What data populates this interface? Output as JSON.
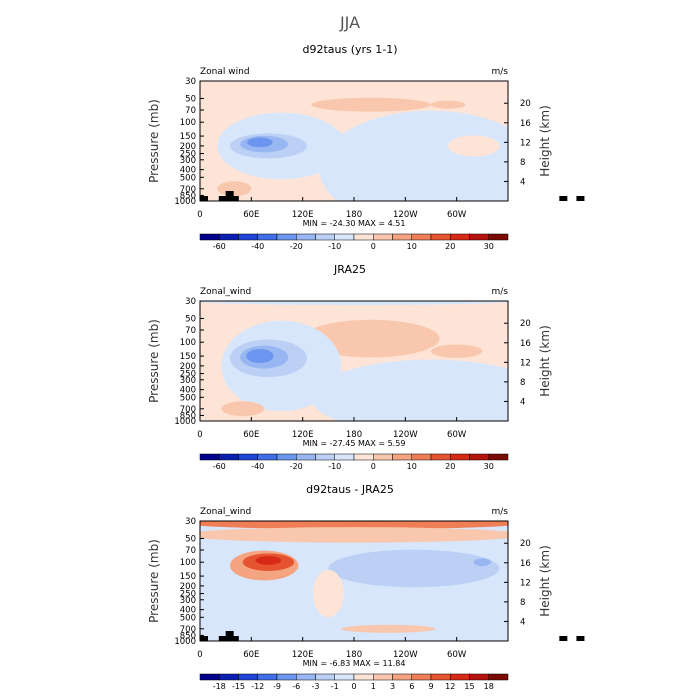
{
  "figure": {
    "title": "JJA",
    "variable": "Zonal wind",
    "units": "m/s"
  },
  "chart_data": [
    {
      "type": "heatmap",
      "title": "d92taus (yrs 1-1)",
      "variable_label": "Zonal wind",
      "units": "m/s",
      "ylabel": "Pressure (mb)",
      "ylabel_right": "Height (km)",
      "xticks": [
        "0",
        "60E",
        "120E",
        "180",
        "120W",
        "60W"
      ],
      "yticks_left": [
        "30",
        "50",
        "70",
        "100",
        "150",
        "200",
        "250",
        "300",
        "400",
        "500",
        "700",
        "850",
        "1000"
      ],
      "yticks_right": [
        "20",
        "16",
        "12",
        "8",
        "4"
      ],
      "stats": "MIN = -24.30   MAX =   4.51",
      "colorbar_colors": [
        "#00008b",
        "#0a1fb0",
        "#1f45d6",
        "#3f6ee6",
        "#6b95ee",
        "#97b6f2",
        "#bcd0f6",
        "#d8e6fb",
        "#fde4d6",
        "#f9c7ad",
        "#f5a481",
        "#ef7e57",
        "#e65331",
        "#d72a16",
        "#b5120b",
        "#7a0b05"
      ],
      "colorbar_labels": [
        "-60",
        "-40",
        "-20",
        "-10",
        "0",
        "10",
        "20",
        "30"
      ],
      "colorbar_label_at": [
        1,
        3,
        5,
        7,
        9,
        11,
        13,
        15
      ],
      "base_color": "#fde4d6",
      "regions": [
        {
          "lon": 200,
          "p": 60,
          "rx": 70,
          "rp": 12,
          "level": 9
        },
        {
          "lon": 290,
          "p": 60,
          "rx": 20,
          "rp": 6,
          "level": 9
        },
        {
          "lon": 95,
          "p": 200,
          "rx": 75,
          "rp": 150,
          "level": 7
        },
        {
          "lon": 270,
          "p": 400,
          "rx": 130,
          "rp": 450,
          "level": 7
        },
        {
          "lon": 80,
          "p": 200,
          "rx": 45,
          "rp": 70,
          "level": 6
        },
        {
          "lon": 75,
          "p": 190,
          "rx": 28,
          "rp": 45,
          "level": 5
        },
        {
          "lon": 70,
          "p": 180,
          "rx": 15,
          "rp": 25,
          "level": 4
        },
        {
          "lon": 40,
          "p": 700,
          "rx": 20,
          "rp": 150,
          "level": 9
        },
        {
          "lon": 320,
          "p": 200,
          "rx": 30,
          "rp": 60,
          "level": 8
        }
      ],
      "topography": [
        [
          0,
          5
        ],
        [
          22,
          5
        ],
        [
          30,
          10
        ],
        [
          36,
          5
        ],
        [
          420,
          5
        ],
        [
          440,
          5
        ]
      ]
    },
    {
      "type": "heatmap",
      "title": "JRA25",
      "variable_label": "Zonal_wind",
      "units": "m/s",
      "ylabel": "Pressure (mb)",
      "ylabel_right": "Height (km)",
      "xticks": [
        "0",
        "60E",
        "120E",
        "180",
        "120W",
        "60W"
      ],
      "yticks_left": [
        "30",
        "50",
        "70",
        "100",
        "150",
        "200",
        "250",
        "300",
        "400",
        "500",
        "700",
        "850",
        "1000"
      ],
      "yticks_right": [
        "20",
        "16",
        "12",
        "8",
        "4"
      ],
      "stats": "MIN = -27.45   MAX =   5.59",
      "colorbar_colors": [
        "#00008b",
        "#0a1fb0",
        "#1f45d6",
        "#3f6ee6",
        "#6b95ee",
        "#97b6f2",
        "#bcd0f6",
        "#d8e6fb",
        "#fde4d6",
        "#f9c7ad",
        "#f5a481",
        "#ef7e57",
        "#e65331",
        "#d72a16",
        "#b5120b",
        "#7a0b05"
      ],
      "colorbar_labels": [
        "-60",
        "-40",
        "-20",
        "-10",
        "0",
        "10",
        "20",
        "30"
      ],
      "colorbar_label_at": [
        1,
        3,
        5,
        7,
        9,
        11,
        13,
        15
      ],
      "base_color": "#fde4d6",
      "regions": [
        {
          "lon": 180,
          "p": 30,
          "rx": 190,
          "rp": 4,
          "level": 7
        },
        {
          "lon": 200,
          "p": 90,
          "rx": 80,
          "rp": 45,
          "level": 9
        },
        {
          "lon": 300,
          "p": 130,
          "rx": 30,
          "rp": 25,
          "level": 9
        },
        {
          "lon": 95,
          "p": 200,
          "rx": 70,
          "rp": 180,
          "level": 7
        },
        {
          "lon": 270,
          "p": 500,
          "rx": 140,
          "rp": 400,
          "level": 7
        },
        {
          "lon": 80,
          "p": 160,
          "rx": 45,
          "rp": 80,
          "level": 6
        },
        {
          "lon": 75,
          "p": 155,
          "rx": 28,
          "rp": 50,
          "level": 5
        },
        {
          "lon": 70,
          "p": 150,
          "rx": 16,
          "rp": 30,
          "level": 4
        },
        {
          "lon": 50,
          "p": 700,
          "rx": 25,
          "rp": 150,
          "level": 9
        }
      ],
      "topography": []
    },
    {
      "type": "heatmap",
      "title": "d92taus - JRA25",
      "variable_label": "Zonal_wind",
      "units": "m/s",
      "ylabel": "Pressure (mb)",
      "ylabel_right": "Height (km)",
      "xticks": [
        "0",
        "60E",
        "120E",
        "180",
        "120W",
        "60W"
      ],
      "yticks_left": [
        "30",
        "50",
        "70",
        "100",
        "150",
        "200",
        "250",
        "300",
        "400",
        "500",
        "700",
        "850",
        "1000"
      ],
      "yticks_right": [
        "20",
        "16",
        "12",
        "8",
        "4"
      ],
      "stats": "MIN =  -6.83   MAX =  11.84",
      "colorbar_colors": [
        "#00008b",
        "#0a1fb0",
        "#1f45d6",
        "#3f6ee6",
        "#6b95ee",
        "#97b6f2",
        "#bcd0f6",
        "#d8e6fb",
        "#fde4d6",
        "#f9c7ad",
        "#f5a481",
        "#ef7e57",
        "#e65331",
        "#d72a16",
        "#b5120b",
        "#7a0b05"
      ],
      "colorbar_labels": [
        "-18",
        "-15",
        "-12",
        "-9",
        "-6",
        "-3",
        "-1",
        "0",
        "1",
        "3",
        "6",
        "9",
        "12",
        "15",
        "18"
      ],
      "colorbar_label_at": [
        1,
        2,
        3,
        4,
        5,
        6,
        7,
        8,
        9,
        10,
        11,
        12,
        13,
        14,
        15
      ],
      "base_color": "#d8e6fb",
      "regions": [
        {
          "lon": 180,
          "p": 32,
          "rx": 200,
          "rp": 6,
          "level": 11
        },
        {
          "lon": 180,
          "p": 45,
          "rx": 200,
          "rp": 10,
          "level": 9
        },
        {
          "lon": 250,
          "p": 120,
          "rx": 100,
          "rp": 60,
          "level": 6
        },
        {
          "lon": 75,
          "p": 110,
          "rx": 40,
          "rp": 45,
          "level": 10
        },
        {
          "lon": 80,
          "p": 100,
          "rx": 30,
          "rp": 25,
          "level": 12
        },
        {
          "lon": 80,
          "p": 95,
          "rx": 15,
          "rp": 12,
          "level": 13
        },
        {
          "lon": 150,
          "p": 250,
          "rx": 18,
          "rp": 150,
          "level": 8
        },
        {
          "lon": 220,
          "p": 700,
          "rx": 55,
          "rp": 80,
          "level": 9
        },
        {
          "lon": 330,
          "p": 100,
          "rx": 10,
          "rp": 8,
          "level": 5
        }
      ],
      "topography": [
        [
          0,
          5
        ],
        [
          22,
          5
        ],
        [
          30,
          10
        ],
        [
          36,
          5
        ],
        [
          420,
          5
        ],
        [
          440,
          5
        ]
      ]
    }
  ]
}
